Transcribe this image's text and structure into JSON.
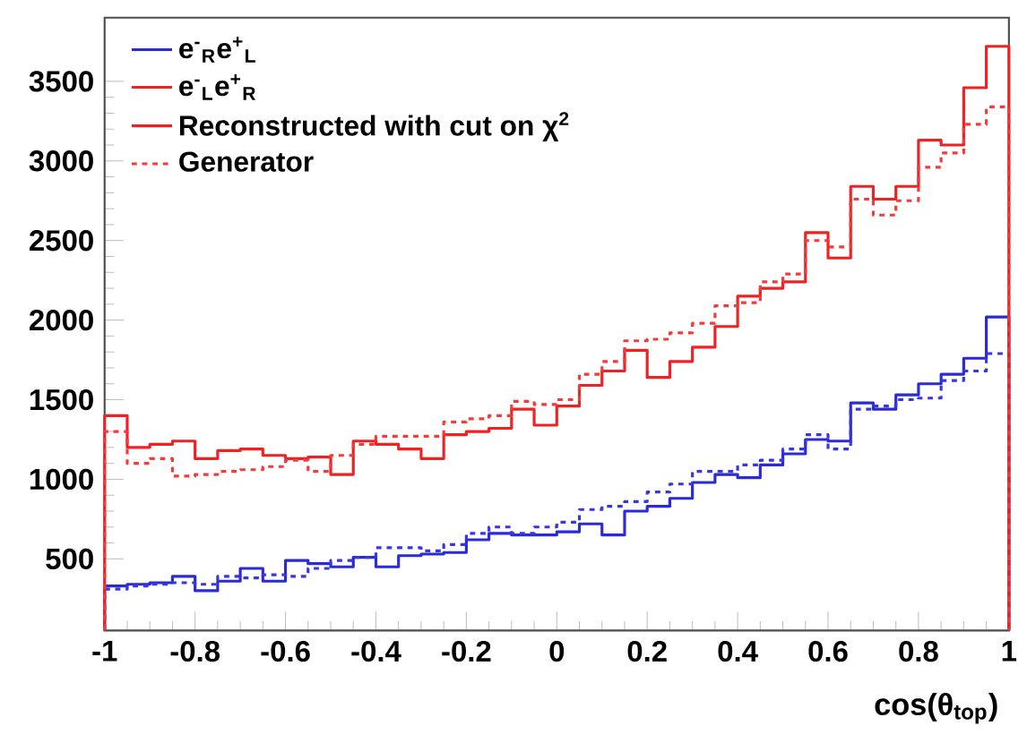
{
  "chart_data": {
    "type": "histogram",
    "bins": [
      -1,
      -0.95,
      -0.9,
      -0.85,
      -0.8,
      -0.75,
      -0.7,
      -0.65,
      -0.6,
      -0.55,
      -0.5,
      -0.45,
      -0.4,
      -0.35,
      -0.3,
      -0.25,
      -0.2,
      -0.15,
      -0.1,
      -0.05,
      0,
      0.05,
      0.1,
      0.15,
      0.2,
      0.25,
      0.3,
      0.35,
      0.4,
      0.45,
      0.5,
      0.55,
      0.6,
      0.65,
      0.7,
      0.75,
      0.8,
      0.85,
      0.9,
      0.95,
      1
    ],
    "series": [
      {
        "name": "e$^{-}$$_{R}$e$^{+}$$_{L}$",
        "color": "#2a2ad8",
        "line_style": "solid",
        "values": [
          330,
          340,
          350,
          390,
          300,
          360,
          440,
          360,
          490,
          470,
          450,
          510,
          450,
          520,
          530,
          540,
          620,
          660,
          650,
          650,
          670,
          720,
          650,
          800,
          830,
          880,
          980,
          1030,
          1010,
          1090,
          1160,
          1250,
          1240,
          1480,
          1440,
          1530,
          1600,
          1660,
          1760,
          2020
        ]
      },
      {
        "color": "#3636e2",
        "line_style": "dotted",
        "values": [
          310,
          330,
          340,
          350,
          340,
          390,
          380,
          400,
          390,
          440,
          490,
          510,
          570,
          570,
          550,
          590,
          660,
          700,
          660,
          700,
          730,
          810,
          830,
          860,
          920,
          970,
          1050,
          1050,
          1090,
          1120,
          1190,
          1280,
          1190,
          1440,
          1460,
          1500,
          1510,
          1620,
          1680,
          1790
        ]
      },
      {
        "name": "e$^{-}$$_{L}$e$^{+}$$_{R}$",
        "color": "#ee2222",
        "line_style": "solid",
        "values": [
          1400,
          1200,
          1220,
          1240,
          1130,
          1180,
          1190,
          1150,
          1130,
          1140,
          1030,
          1240,
          1220,
          1190,
          1130,
          1280,
          1300,
          1320,
          1440,
          1340,
          1460,
          1590,
          1680,
          1810,
          1640,
          1740,
          1830,
          1960,
          2150,
          2200,
          2240,
          2550,
          2390,
          2840,
          2760,
          2840,
          3130,
          3100,
          3460,
          3720
        ]
      },
      {
        "name": "Generator",
        "color": "#f43a3a",
        "line_style": "dotted",
        "values": [
          1300,
          1100,
          1130,
          1020,
          1030,
          1050,
          1060,
          1080,
          1120,
          1050,
          1150,
          1220,
          1270,
          1270,
          1270,
          1360,
          1380,
          1400,
          1490,
          1470,
          1500,
          1660,
          1740,
          1870,
          1880,
          1920,
          1980,
          2090,
          2110,
          2240,
          2290,
          2500,
          2460,
          2760,
          2660,
          2750,
          2960,
          3050,
          3230,
          3340
        ]
      }
    ],
    "annotations": [
      "Reconstructed with cut on χ$^{2}$"
    ],
    "xlabel": "cos(θ$_{top}$)",
    "xlim": [
      -1,
      1
    ],
    "xticks": [
      -1,
      -0.8,
      -0.6,
      -0.4,
      -0.2,
      0,
      0.2,
      0.4,
      0.6,
      0.8,
      1
    ],
    "ylim": [
      50,
      3900
    ],
    "yticks": [
      500,
      1000,
      1500,
      2000,
      2500,
      3000,
      3500
    ],
    "grid": false,
    "legend": "top left"
  }
}
